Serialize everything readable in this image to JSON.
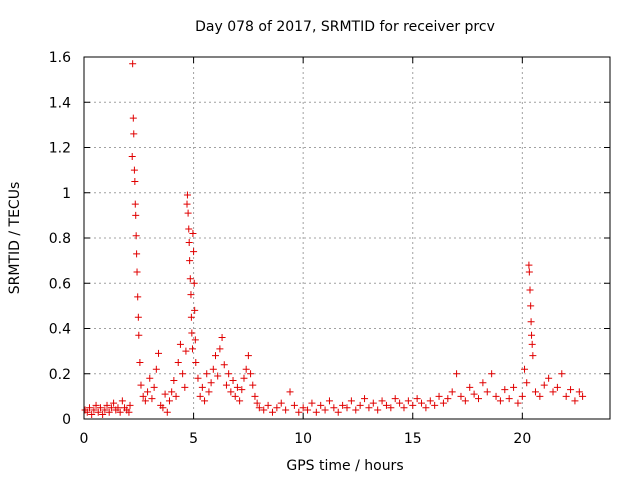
{
  "chart_data": {
    "type": "scatter",
    "title": "Day 078 of 2017, SRMTID for receiver prcv",
    "xlabel": "GPS time / hours",
    "ylabel": "SRMTID / TECUs",
    "xlim": [
      0,
      24
    ],
    "ylim": [
      0,
      1.6
    ],
    "x_ticks": [
      0,
      5,
      10,
      15,
      20
    ],
    "x_tick_labels": [
      "0",
      "5",
      "10",
      "15",
      "20"
    ],
    "y_ticks": [
      0,
      0.2,
      0.4,
      0.6,
      0.8,
      1.0,
      1.2,
      1.4,
      1.6
    ],
    "y_tick_labels": [
      "0",
      "0.2",
      "0.4",
      "0.6",
      "0.8",
      "1",
      "1.2",
      "1.4",
      "1.6"
    ],
    "grid": true,
    "marker": "+",
    "marker_color": "#e00000",
    "series": [
      {
        "name": "SRMTID",
        "points": [
          [
            0.05,
            0.04
          ],
          [
            0.15,
            0.03
          ],
          [
            0.25,
            0.05
          ],
          [
            0.35,
            0.02
          ],
          [
            0.45,
            0.04
          ],
          [
            0.55,
            0.06
          ],
          [
            0.65,
            0.03
          ],
          [
            0.75,
            0.05
          ],
          [
            0.85,
            0.02
          ],
          [
            0.95,
            0.04
          ],
          [
            1.05,
            0.06
          ],
          [
            1.15,
            0.03
          ],
          [
            1.25,
            0.05
          ],
          [
            1.35,
            0.07
          ],
          [
            1.45,
            0.04
          ],
          [
            1.55,
            0.05
          ],
          [
            1.65,
            0.03
          ],
          [
            1.75,
            0.08
          ],
          [
            1.85,
            0.05
          ],
          [
            1.95,
            0.04
          ],
          [
            2.05,
            0.03
          ],
          [
            2.1,
            0.06
          ],
          [
            2.2,
            1.16
          ],
          [
            2.22,
            1.57
          ],
          [
            2.25,
            1.33
          ],
          [
            2.27,
            1.26
          ],
          [
            2.3,
            1.1
          ],
          [
            2.32,
            1.05
          ],
          [
            2.34,
            0.95
          ],
          [
            2.36,
            0.9
          ],
          [
            2.38,
            0.81
          ],
          [
            2.4,
            0.73
          ],
          [
            2.42,
            0.65
          ],
          [
            2.45,
            0.54
          ],
          [
            2.48,
            0.45
          ],
          [
            2.5,
            0.37
          ],
          [
            2.55,
            0.25
          ],
          [
            2.6,
            0.15
          ],
          [
            2.7,
            0.1
          ],
          [
            2.8,
            0.08
          ],
          [
            2.9,
            0.12
          ],
          [
            3.0,
            0.18
          ],
          [
            3.1,
            0.09
          ],
          [
            3.2,
            0.14
          ],
          [
            3.3,
            0.22
          ],
          [
            3.4,
            0.29
          ],
          [
            3.5,
            0.06
          ],
          [
            3.6,
            0.05
          ],
          [
            3.7,
            0.11
          ],
          [
            3.8,
            0.03
          ],
          [
            3.9,
            0.08
          ],
          [
            4.0,
            0.12
          ],
          [
            4.1,
            0.17
          ],
          [
            4.2,
            0.1
          ],
          [
            4.3,
            0.25
          ],
          [
            4.4,
            0.33
          ],
          [
            4.5,
            0.2
          ],
          [
            4.6,
            0.14
          ],
          [
            4.65,
            0.3
          ],
          [
            4.7,
            0.95
          ],
          [
            4.72,
            0.99
          ],
          [
            4.75,
            0.91
          ],
          [
            4.78,
            0.84
          ],
          [
            4.8,
            0.78
          ],
          [
            4.82,
            0.7
          ],
          [
            4.85,
            0.62
          ],
          [
            4.88,
            0.55
          ],
          [
            4.9,
            0.45
          ],
          [
            4.92,
            0.38
          ],
          [
            4.95,
            0.31
          ],
          [
            4.97,
            0.82
          ],
          [
            5.0,
            0.74
          ],
          [
            5.03,
            0.6
          ],
          [
            5.05,
            0.48
          ],
          [
            5.08,
            0.35
          ],
          [
            5.1,
            0.25
          ],
          [
            5.2,
            0.18
          ],
          [
            5.3,
            0.1
          ],
          [
            5.4,
            0.14
          ],
          [
            5.5,
            0.08
          ],
          [
            5.6,
            0.2
          ],
          [
            5.7,
            0.12
          ],
          [
            5.8,
            0.16
          ],
          [
            5.9,
            0.22
          ],
          [
            6.0,
            0.28
          ],
          [
            6.1,
            0.19
          ],
          [
            6.2,
            0.31
          ],
          [
            6.3,
            0.36
          ],
          [
            6.4,
            0.24
          ],
          [
            6.5,
            0.15
          ],
          [
            6.6,
            0.2
          ],
          [
            6.7,
            0.12
          ],
          [
            6.8,
            0.17
          ],
          [
            6.9,
            0.1
          ],
          [
            7.0,
            0.14
          ],
          [
            7.1,
            0.08
          ],
          [
            7.2,
            0.13
          ],
          [
            7.3,
            0.18
          ],
          [
            7.4,
            0.22
          ],
          [
            7.5,
            0.28
          ],
          [
            7.6,
            0.2
          ],
          [
            7.7,
            0.15
          ],
          [
            7.8,
            0.1
          ],
          [
            7.9,
            0.07
          ],
          [
            8.0,
            0.05
          ],
          [
            8.2,
            0.04
          ],
          [
            8.4,
            0.06
          ],
          [
            8.6,
            0.03
          ],
          [
            8.8,
            0.05
          ],
          [
            9.0,
            0.07
          ],
          [
            9.2,
            0.04
          ],
          [
            9.4,
            0.12
          ],
          [
            9.6,
            0.06
          ],
          [
            9.8,
            0.03
          ],
          [
            10.0,
            0.05
          ],
          [
            10.2,
            0.04
          ],
          [
            10.4,
            0.07
          ],
          [
            10.6,
            0.03
          ],
          [
            10.8,
            0.06
          ],
          [
            11.0,
            0.04
          ],
          [
            11.2,
            0.08
          ],
          [
            11.4,
            0.05
          ],
          [
            11.6,
            0.03
          ],
          [
            11.8,
            0.06
          ],
          [
            12.0,
            0.05
          ],
          [
            12.2,
            0.08
          ],
          [
            12.4,
            0.04
          ],
          [
            12.6,
            0.06
          ],
          [
            12.8,
            0.09
          ],
          [
            13.0,
            0.05
          ],
          [
            13.2,
            0.07
          ],
          [
            13.4,
            0.04
          ],
          [
            13.6,
            0.08
          ],
          [
            13.8,
            0.06
          ],
          [
            14.0,
            0.05
          ],
          [
            14.2,
            0.09
          ],
          [
            14.4,
            0.07
          ],
          [
            14.6,
            0.05
          ],
          [
            14.8,
            0.08
          ],
          [
            15.0,
            0.06
          ],
          [
            15.2,
            0.09
          ],
          [
            15.4,
            0.07
          ],
          [
            15.6,
            0.05
          ],
          [
            15.8,
            0.08
          ],
          [
            16.0,
            0.06
          ],
          [
            16.2,
            0.1
          ],
          [
            16.4,
            0.07
          ],
          [
            16.6,
            0.09
          ],
          [
            16.8,
            0.12
          ],
          [
            17.0,
            0.2
          ],
          [
            17.2,
            0.1
          ],
          [
            17.4,
            0.08
          ],
          [
            17.6,
            0.14
          ],
          [
            17.8,
            0.11
          ],
          [
            18.0,
            0.09
          ],
          [
            18.2,
            0.16
          ],
          [
            18.4,
            0.12
          ],
          [
            18.6,
            0.2
          ],
          [
            18.8,
            0.1
          ],
          [
            19.0,
            0.08
          ],
          [
            19.2,
            0.13
          ],
          [
            19.4,
            0.09
          ],
          [
            19.6,
            0.14
          ],
          [
            19.8,
            0.07
          ],
          [
            20.0,
            0.1
          ],
          [
            20.1,
            0.22
          ],
          [
            20.2,
            0.16
          ],
          [
            20.3,
            0.68
          ],
          [
            20.32,
            0.65
          ],
          [
            20.35,
            0.57
          ],
          [
            20.38,
            0.5
          ],
          [
            20.4,
            0.43
          ],
          [
            20.42,
            0.37
          ],
          [
            20.45,
            0.33
          ],
          [
            20.48,
            0.28
          ],
          [
            20.6,
            0.12
          ],
          [
            20.8,
            0.1
          ],
          [
            21.0,
            0.15
          ],
          [
            21.2,
            0.18
          ],
          [
            21.4,
            0.12
          ],
          [
            21.6,
            0.14
          ],
          [
            21.8,
            0.2
          ],
          [
            22.0,
            0.1
          ],
          [
            22.2,
            0.13
          ],
          [
            22.4,
            0.08
          ],
          [
            22.6,
            0.12
          ],
          [
            22.75,
            0.1
          ]
        ]
      }
    ]
  }
}
